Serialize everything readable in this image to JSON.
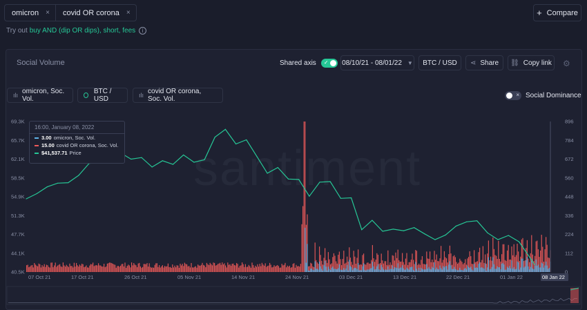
{
  "tabs": [
    {
      "label": "omicron"
    },
    {
      "label": "covid OR corona"
    }
  ],
  "close_glyph": "×",
  "compare_label": "Compare",
  "tryout": {
    "prefix": "Try out",
    "link": "buy AND (dip OR dips), short, fees",
    "info": "i"
  },
  "chart_title": "Social Volume",
  "shared_axis_label": "Shared axis",
  "date_range": "08/10/21 - 08/01/22",
  "pair_label": "BTC / USD",
  "share_label": "Share",
  "copy_link_label": "Copy link",
  "metrics": [
    {
      "label": "omicron, Soc. Vol."
    },
    {
      "label": "BTC / USD"
    },
    {
      "label": "covid OR corona, Soc. Vol."
    }
  ],
  "social_dominance_label": "Social Dominance",
  "watermark": "santiment",
  "tooltip": {
    "date": "16:00, January 08, 2022",
    "rows": [
      {
        "value": "3.00",
        "label": "omicron, Soc. Vol.",
        "color": "#5fb4e8"
      },
      {
        "value": "15.00",
        "label": "covid OR corona, Soc. Vol.",
        "color": "#ef5a5a"
      },
      {
        "value": "$41,537.71",
        "label": "Price",
        "color": "#26c796"
      }
    ]
  },
  "colors": {
    "price": "#26c796",
    "covid": "#ef5a5a",
    "omicron": "#5fb4e8",
    "accent": "#26c796"
  },
  "chart_data": {
    "type": "line",
    "x_ticks": [
      "07 Oct 21",
      "17 Oct 21",
      "26 Oct 21",
      "05 Nov 21",
      "14 Nov 21",
      "24 Nov 21",
      "03 Dec 21",
      "13 Dec 21",
      "22 Dec 21",
      "01 Jan 22"
    ],
    "x_highlight": "08 Jan 22",
    "y_left_ticks": [
      "69.3K",
      "65.7K",
      "62.1K",
      "58.5K",
      "54.9K",
      "51.3K",
      "47.7K",
      "44.1K",
      "40.5K"
    ],
    "y_right_ticks": [
      "896",
      "784",
      "672",
      "560",
      "448",
      "336",
      "224",
      "112",
      "0"
    ],
    "y_left_range": [
      40500,
      69300
    ],
    "y_right_range": [
      0,
      896
    ],
    "x_range": [
      "2021-10-03",
      "2022-01-11"
    ],
    "series": [
      {
        "name": "BTC / USD",
        "axis": "left",
        "x": [
          "2021-10-03",
          "2021-10-05",
          "2021-10-07",
          "2021-10-09",
          "2021-10-11",
          "2021-10-13",
          "2021-10-15",
          "2021-10-17",
          "2021-10-19",
          "2021-10-21",
          "2021-10-23",
          "2021-10-25",
          "2021-10-27",
          "2021-10-29",
          "2021-10-31",
          "2021-11-02",
          "2021-11-04",
          "2021-11-06",
          "2021-11-08",
          "2021-11-10",
          "2021-11-12",
          "2021-11-14",
          "2021-11-16",
          "2021-11-18",
          "2021-11-20",
          "2021-11-22",
          "2021-11-24",
          "2021-11-26",
          "2021-11-28",
          "2021-11-30",
          "2021-12-02",
          "2021-12-04",
          "2021-12-06",
          "2021-12-08",
          "2021-12-10",
          "2021-12-12",
          "2021-12-14",
          "2021-12-16",
          "2021-12-18",
          "2021-12-20",
          "2021-12-22",
          "2021-12-24",
          "2021-12-26",
          "2021-12-28",
          "2021-12-30",
          "2022-01-01",
          "2022-01-03",
          "2022-01-05",
          "2022-01-07",
          "2022-01-08"
        ],
        "values": [
          54500,
          55500,
          56800,
          57500,
          57600,
          59000,
          61300,
          61500,
          62200,
          63300,
          62100,
          62400,
          60600,
          61800,
          61100,
          62900,
          61500,
          62000,
          66300,
          67800,
          65000,
          65800,
          62600,
          59400,
          60500,
          58300,
          58200,
          55000,
          57700,
          57800,
          54600,
          54700,
          48600,
          50400,
          48300,
          48700,
          48400,
          49000,
          47800,
          46700,
          47600,
          49300,
          50100,
          50300,
          48000,
          46700,
          47500,
          46300,
          43400,
          41900
        ]
      },
      {
        "name": "covid OR corona, Soc. Vol.",
        "axis": "right",
        "note": "bars"
      },
      {
        "name": "omicron, Soc. Vol.",
        "axis": "right",
        "note": "bars"
      }
    ]
  }
}
